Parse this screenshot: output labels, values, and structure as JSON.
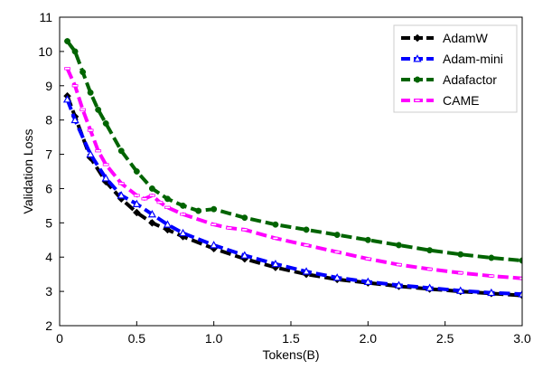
{
  "chart_data": {
    "type": "line",
    "title": "",
    "xlabel": "Tokens(B)",
    "ylabel": "Validation Loss",
    "xlim": [
      0,
      3.0
    ],
    "ylim": [
      2,
      11
    ],
    "xticks": [
      0,
      0.5,
      1.0,
      1.5,
      2.0,
      2.5,
      3.0
    ],
    "xtick_labels": [
      "0",
      "0.5",
      "1.0",
      "1.5",
      "2.0",
      "2.5",
      "3.0"
    ],
    "yticks": [
      2,
      3,
      4,
      5,
      6,
      7,
      8,
      9,
      10,
      11
    ],
    "ytick_labels": [
      "2",
      "3",
      "4",
      "5",
      "6",
      "7",
      "8",
      "9",
      "10",
      "11"
    ],
    "grid": false,
    "legend_position": "top-right",
    "series": [
      {
        "name": "AdamW",
        "color": "#000000",
        "marker": "diamond",
        "x": [
          0.05,
          0.1,
          0.2,
          0.3,
          0.4,
          0.5,
          0.6,
          0.7,
          0.8,
          1.0,
          1.2,
          1.4,
          1.6,
          1.8,
          2.0,
          2.2,
          2.4,
          2.6,
          2.8,
          3.0
        ],
        "y": [
          8.7,
          8.1,
          6.9,
          6.2,
          5.7,
          5.3,
          5.0,
          4.8,
          4.6,
          4.25,
          3.95,
          3.7,
          3.5,
          3.35,
          3.25,
          3.15,
          3.07,
          3.0,
          2.94,
          2.88
        ]
      },
      {
        "name": "Adam-mini",
        "color": "#0000ff",
        "marker": "triangle",
        "x": [
          0.05,
          0.1,
          0.2,
          0.3,
          0.4,
          0.5,
          0.6,
          0.7,
          0.8,
          1.0,
          1.2,
          1.4,
          1.6,
          1.8,
          2.0,
          2.2,
          2.4,
          2.6,
          2.8,
          3.0
        ],
        "y": [
          8.6,
          8.0,
          7.0,
          6.3,
          5.8,
          5.55,
          5.25,
          4.95,
          4.7,
          4.35,
          4.05,
          3.8,
          3.58,
          3.4,
          3.28,
          3.18,
          3.1,
          3.02,
          2.96,
          2.92
        ]
      },
      {
        "name": "Adafactor",
        "color": "#006400",
        "marker": "circle",
        "x": [
          0.05,
          0.1,
          0.15,
          0.2,
          0.25,
          0.3,
          0.4,
          0.5,
          0.6,
          0.7,
          0.8,
          0.9,
          1.0,
          1.2,
          1.4,
          1.6,
          1.8,
          2.0,
          2.2,
          2.4,
          2.6,
          2.8,
          3.0
        ],
        "y": [
          10.3,
          10.0,
          9.4,
          8.8,
          8.3,
          7.9,
          7.1,
          6.5,
          6.0,
          5.7,
          5.5,
          5.35,
          5.4,
          5.15,
          4.95,
          4.8,
          4.65,
          4.5,
          4.35,
          4.2,
          4.08,
          3.98,
          3.9
        ]
      },
      {
        "name": "CAME",
        "color": "#ff00ff",
        "marker": "dash",
        "x": [
          0.05,
          0.1,
          0.15,
          0.2,
          0.25,
          0.3,
          0.4,
          0.5,
          0.55,
          0.6,
          0.65,
          0.7,
          0.8,
          1.0,
          1.1,
          1.2,
          1.4,
          1.6,
          1.8,
          2.0,
          2.2,
          2.4,
          2.6,
          2.8,
          3.0
        ],
        "y": [
          9.5,
          9.0,
          8.3,
          7.7,
          7.1,
          6.7,
          6.15,
          5.8,
          5.7,
          5.8,
          5.6,
          5.45,
          5.25,
          4.95,
          4.85,
          4.8,
          4.55,
          4.35,
          4.15,
          3.95,
          3.78,
          3.65,
          3.54,
          3.45,
          3.38
        ]
      }
    ]
  }
}
